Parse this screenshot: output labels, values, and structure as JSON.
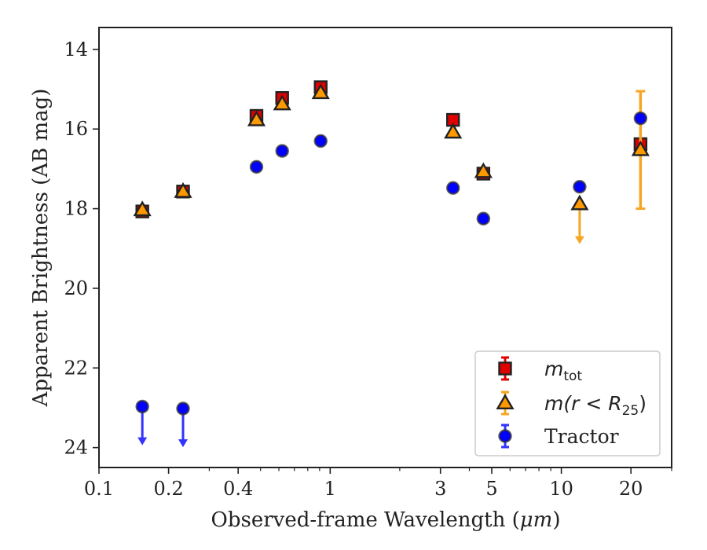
{
  "chart_data": {
    "type": "scatter",
    "xscale": "log",
    "xlim": [
      0.1,
      30
    ],
    "ylim": [
      24.5,
      13.45
    ],
    "y_inverted": true,
    "grid": false,
    "legend_position": "bottom-right",
    "xlabel_prefix": "Observed-frame Wavelength (",
    "xlabel_unit": "μm",
    "xlabel_suffix": ")",
    "ylabel": "Apparent Brightness (AB mag)",
    "x_ticks": [
      {
        "value": 0.1,
        "label": "0.1"
      },
      {
        "value": 0.2,
        "label": "0.2"
      },
      {
        "value": 0.4,
        "label": "0.4"
      },
      {
        "value": 1,
        "label": "1"
      },
      {
        "value": 3,
        "label": "3"
      },
      {
        "value": 5,
        "label": "5"
      },
      {
        "value": 10,
        "label": "10"
      },
      {
        "value": 20,
        "label": "20"
      }
    ],
    "x_minor_ticks": [
      0.3,
      0.5,
      0.6,
      0.7,
      0.8,
      0.9,
      2,
      4,
      6,
      7,
      8,
      9,
      30
    ],
    "y_ticks": [
      {
        "value": 14,
        "label": "14"
      },
      {
        "value": 16,
        "label": "16"
      },
      {
        "value": 18,
        "label": "18"
      },
      {
        "value": 20,
        "label": "20"
      },
      {
        "value": 22,
        "label": "22"
      },
      {
        "value": 24,
        "label": "24"
      }
    ],
    "series": [
      {
        "name": "m_tot",
        "legend_main": "m",
        "legend_sub": "tot",
        "marker": "square",
        "color": "#e00000",
        "edge_color": "#222222",
        "error_color": "#e00000",
        "points": [
          {
            "x": 0.154,
            "y": 18.07
          },
          {
            "x": 0.231,
            "y": 17.57
          },
          {
            "x": 0.48,
            "y": 15.67
          },
          {
            "x": 0.62,
            "y": 15.22
          },
          {
            "x": 0.91,
            "y": 14.95
          },
          {
            "x": 3.4,
            "y": 15.77
          },
          {
            "x": 4.6,
            "y": 17.12
          },
          {
            "x": 22,
            "y": 16.38
          }
        ]
      },
      {
        "name": "m(r < R25)",
        "legend_main": "m(r < R",
        "legend_sub": "25",
        "legend_tail": ")",
        "marker": "triangle",
        "color": "#ff9900",
        "edge_color": "#222222",
        "error_color": "#f5a623",
        "points": [
          {
            "x": 0.154,
            "y": 18.03
          },
          {
            "x": 0.231,
            "y": 17.57
          },
          {
            "x": 0.48,
            "y": 15.77
          },
          {
            "x": 0.62,
            "y": 15.37
          },
          {
            "x": 0.91,
            "y": 15.09
          },
          {
            "x": 3.4,
            "y": 16.08
          },
          {
            "x": 4.6,
            "y": 17.07
          },
          {
            "x": 12,
            "y": 17.88,
            "upper_limit": true,
            "limit_to": 18.85
          },
          {
            "x": 22,
            "y": 16.52,
            "err_low": 15.05,
            "err_high": 18.0
          }
        ]
      },
      {
        "name": "Tractor",
        "legend_main": "Tractor",
        "marker": "circle",
        "color": "#0000ff",
        "edge_color": "#333333",
        "error_color": "#3333ff",
        "points": [
          {
            "x": 0.154,
            "y": 22.97,
            "upper_limit": true,
            "limit_to": 23.9
          },
          {
            "x": 0.231,
            "y": 23.02,
            "upper_limit": true,
            "limit_to": 23.95
          },
          {
            "x": 0.48,
            "y": 16.95
          },
          {
            "x": 0.62,
            "y": 16.55
          },
          {
            "x": 0.91,
            "y": 16.3
          },
          {
            "x": 3.4,
            "y": 17.48
          },
          {
            "x": 4.6,
            "y": 18.25
          },
          {
            "x": 12,
            "y": 17.45
          },
          {
            "x": 22,
            "y": 15.73
          }
        ]
      }
    ]
  }
}
